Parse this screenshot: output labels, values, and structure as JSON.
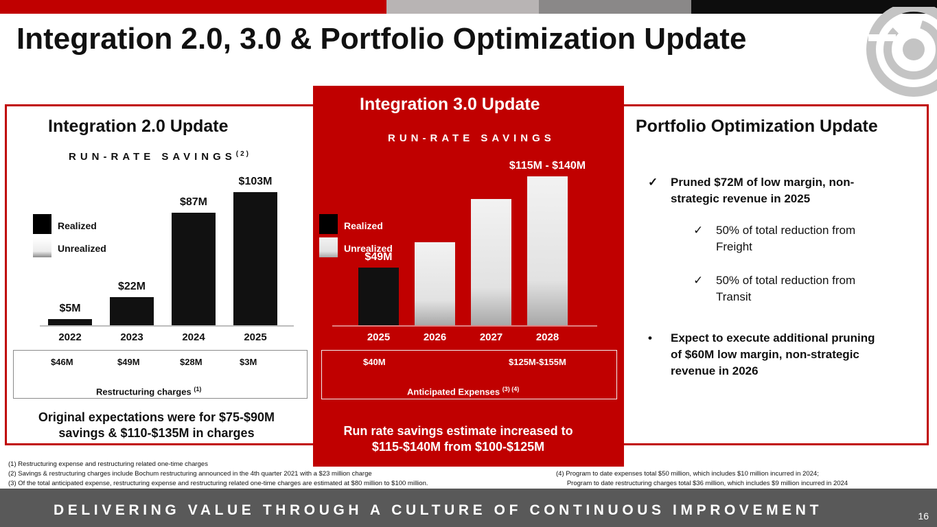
{
  "title": "Integration 2.0, 3.0 & Portfolio Optimization Update",
  "colors": {
    "brand_red": "#c00000",
    "dark_gray": "#595959",
    "black": "#111111"
  },
  "integration2": {
    "heading": "Integration 2.0 Update",
    "subheading": "RUN-RATE SAVINGS",
    "subheading_note": "(2)",
    "legend": {
      "realized": "Realized",
      "unrealized": "Unrealized"
    },
    "charges_label": "Restructuring  charges",
    "charges_note": "(1)",
    "charges": [
      "$46M",
      "$49M",
      "$28M",
      "$3M"
    ],
    "bottom_text_1": "Original expectations were for $75-$90M",
    "bottom_text_2": "savings & $110-$135M in charges"
  },
  "integration3": {
    "heading": "Integration 3.0 Update",
    "subheading": "RUN-RATE SAVINGS",
    "legend": {
      "realized": "Realized",
      "unrealized": "Unrealized"
    },
    "expenses_label": "Anticipated Expenses",
    "expenses_note": "(3) (4)",
    "expenses": [
      "$40M",
      "$125M-$155M"
    ],
    "bottom_text_1": "Run rate savings estimate increased to",
    "bottom_text_2": "$115-$140M from $100-$125M"
  },
  "portfolio": {
    "heading": "Portfolio Optimization Update",
    "bullets": [
      {
        "icon": "check-icon",
        "line1": "Pruned $72M of low margin, non-",
        "line2": "strategic revenue in 2025"
      },
      {
        "icon": "check-icon",
        "line1": "50% of total reduction from",
        "line2": "Freight"
      },
      {
        "icon": "check-icon",
        "line1": "50% of total reduction from",
        "line2": "Transit"
      },
      {
        "icon": "bullet-icon",
        "line1": "Expect to execute additional pruning",
        "line2": "of $60M low margin, non-strategic",
        "line3": "revenue in 2026"
      }
    ]
  },
  "chart_data": [
    {
      "type": "bar",
      "title": "RUN-RATE SAVINGS",
      "categories": [
        "2022",
        "2023",
        "2024",
        "2025"
      ],
      "series": [
        {
          "name": "Realized",
          "values": [
            5,
            22,
            87,
            103
          ]
        }
      ],
      "data_labels": [
        "$5M",
        "$22M",
        "$87M",
        "$103M"
      ],
      "ylim": [
        0,
        110
      ]
    },
    {
      "type": "bar",
      "title": "RUN-RATE SAVINGS",
      "categories": [
        "2025",
        "2026",
        "2027",
        "2028"
      ],
      "series": [
        {
          "name": "Realized",
          "values": [
            49,
            0,
            0,
            0
          ]
        },
        {
          "name": "Unrealized",
          "values": [
            0,
            71,
            108,
            127.5
          ]
        }
      ],
      "data_labels": [
        "$49M",
        "",
        "",
        "$115M - $140M"
      ],
      "ylim": [
        0,
        136
      ]
    }
  ],
  "footnotes": {
    "f1": "(1)    Restructuring expense and restructuring related one-time charges",
    "f2": "(2)    Savings & restructuring charges include Bochum restructuring announced in the 4th quarter 2021 with a $23 million charge",
    "f3": "(3)    Of the total anticipated expense, restructuring expense and restructuring related one-time charges are estimated at $80 million to $100 million.",
    "f4a": "(4) Program to date expenses total $50 million, which includes $10 million incurred in 2024;",
    "f4b": "      Program to date restructuring charges total $36 million, which includes $9 million incurred in 2024"
  },
  "tagline": "DELIVERING VALUE THROUGH A CULTURE OF CONTINUOUS IMPROVEMENT",
  "page_number": "16"
}
